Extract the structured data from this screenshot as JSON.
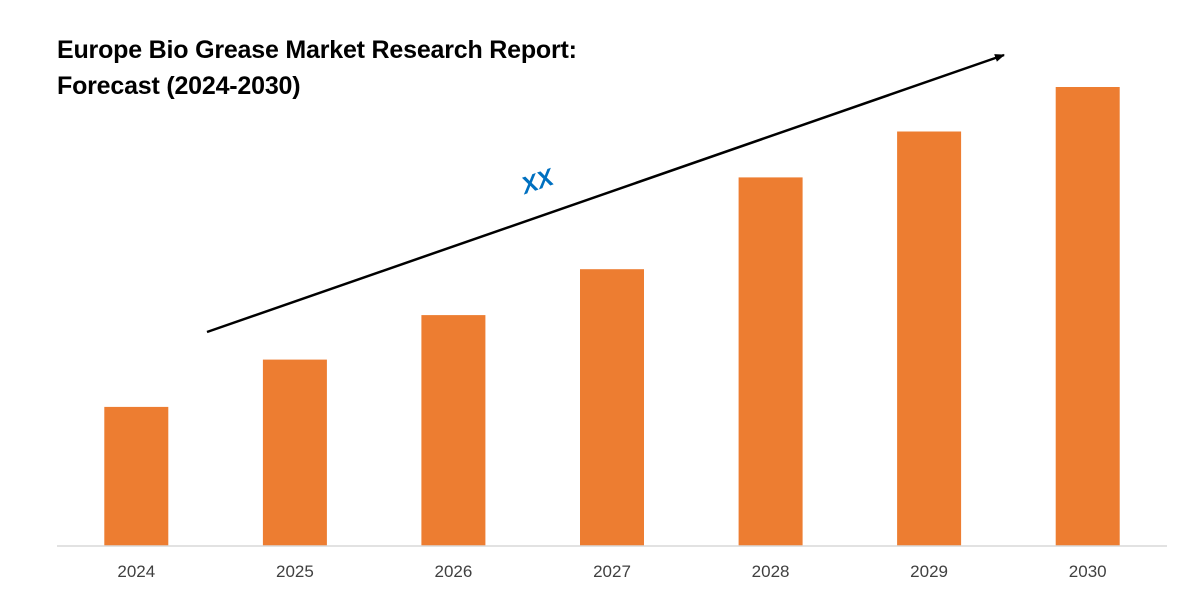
{
  "chart_data": {
    "type": "bar",
    "title": "Europe Bio Grease Market Research Report: Forecast (2024-2030)",
    "title_lines": [
      "Europe Bio Grease Market Research Report:",
      "Forecast (2024-2030)"
    ],
    "categories": [
      "2024",
      "2025",
      "2026",
      "2027",
      "2028",
      "2029",
      "2030"
    ],
    "values": [
      1.0,
      1.34,
      1.66,
      1.99,
      2.65,
      2.98,
      3.3
    ],
    "xlabel": "",
    "ylabel": "",
    "ylim": [
      0,
      3.3
    ],
    "y_axis_visible": false,
    "grid": false,
    "legend": "none",
    "bar_color": "#ED7D31",
    "baseline_color": "#D9D9D9",
    "trend_arrow": {
      "label": "XX",
      "label_color": "#0070C0",
      "line_color": "#000000"
    }
  }
}
